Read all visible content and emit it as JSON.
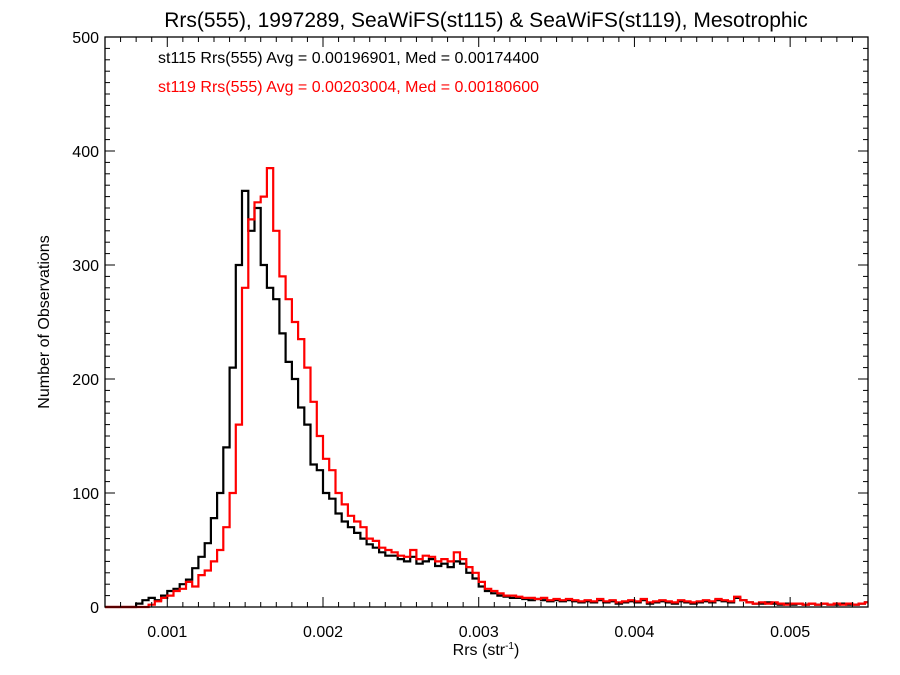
{
  "chart_data": {
    "type": "line",
    "style": "step-histogram",
    "title": "Rrs(555), 1997289, SeaWiFS(st115) & SeaWiFS(st119), Mesotrophic",
    "xlabel": "Rrs (str",
    "xlabel_sup": "-1",
    "xlabel_end": ")",
    "ylabel": "Number of Observations",
    "xlim": [
      0.0006,
      0.0055
    ],
    "ylim": [
      0,
      500
    ],
    "x_ticks": [
      "0.001",
      "0.002",
      "0.003",
      "0.004",
      "0.005"
    ],
    "x_tick_values": [
      0.001,
      0.002,
      0.003,
      0.004,
      0.005
    ],
    "y_ticks": [
      "0",
      "100",
      "200",
      "300",
      "400",
      "500"
    ],
    "y_tick_values": [
      0,
      100,
      200,
      300,
      400,
      500
    ],
    "grid": false,
    "bin_start": 0.0006,
    "bin_width": 4e-05,
    "annotations": [
      {
        "text": "st115 Rrs(555) Avg = 0.00196901, Med = 0.00174400",
        "color": "#000000"
      },
      {
        "text": "st119 Rrs(555) Avg = 0.00203004, Med = 0.00180600",
        "color": "#ff0000"
      }
    ],
    "series": [
      {
        "name": "st115",
        "color": "#000000",
        "values": [
          0,
          0,
          0,
          0,
          0,
          3,
          6,
          8,
          6,
          10,
          14,
          16,
          20,
          24,
          34,
          44,
          56,
          78,
          100,
          140,
          210,
          300,
          365,
          330,
          350,
          300,
          280,
          270,
          240,
          215,
          200,
          175,
          160,
          125,
          120,
          100,
          95,
          82,
          75,
          70,
          65,
          60,
          55,
          52,
          48,
          45,
          45,
          42,
          40,
          44,
          38,
          40,
          42,
          36,
          38,
          35,
          40,
          38,
          30,
          25,
          18,
          14,
          12,
          10,
          9,
          8,
          8,
          7,
          6,
          7,
          6,
          5,
          6,
          5,
          6,
          5,
          4,
          5,
          4,
          6,
          4,
          5,
          3,
          4,
          5,
          4,
          6,
          3,
          4,
          5,
          4,
          3,
          5,
          4,
          3,
          4,
          5,
          4,
          6,
          5,
          4,
          8,
          6,
          4,
          3,
          3,
          4,
          3,
          2,
          3,
          2,
          3,
          2,
          3,
          2,
          3,
          2,
          2,
          3,
          2,
          2,
          3,
          4
        ]
      },
      {
        "name": "st119",
        "color": "#ff0000",
        "values": [
          0,
          0,
          0,
          0,
          0,
          0,
          0,
          2,
          5,
          8,
          10,
          14,
          16,
          22,
          18,
          28,
          32,
          40,
          50,
          70,
          100,
          160,
          280,
          340,
          355,
          360,
          385,
          330,
          290,
          270,
          250,
          235,
          210,
          180,
          150,
          130,
          120,
          100,
          90,
          80,
          75,
          70,
          60,
          58,
          52,
          50,
          48,
          45,
          44,
          50,
          42,
          45,
          44,
          40,
          42,
          40,
          48,
          42,
          35,
          30,
          22,
          16,
          14,
          12,
          10,
          10,
          9,
          8,
          8,
          7,
          8,
          6,
          7,
          6,
          7,
          6,
          5,
          6,
          5,
          7,
          5,
          6,
          4,
          5,
          6,
          5,
          7,
          4,
          5,
          6,
          5,
          4,
          6,
          5,
          4,
          5,
          6,
          5,
          7,
          6,
          5,
          9,
          6,
          4,
          3,
          4,
          3,
          4,
          3,
          2,
          3,
          3,
          2,
          3,
          2,
          3,
          2,
          3,
          2,
          3,
          2,
          3,
          4
        ]
      }
    ]
  }
}
